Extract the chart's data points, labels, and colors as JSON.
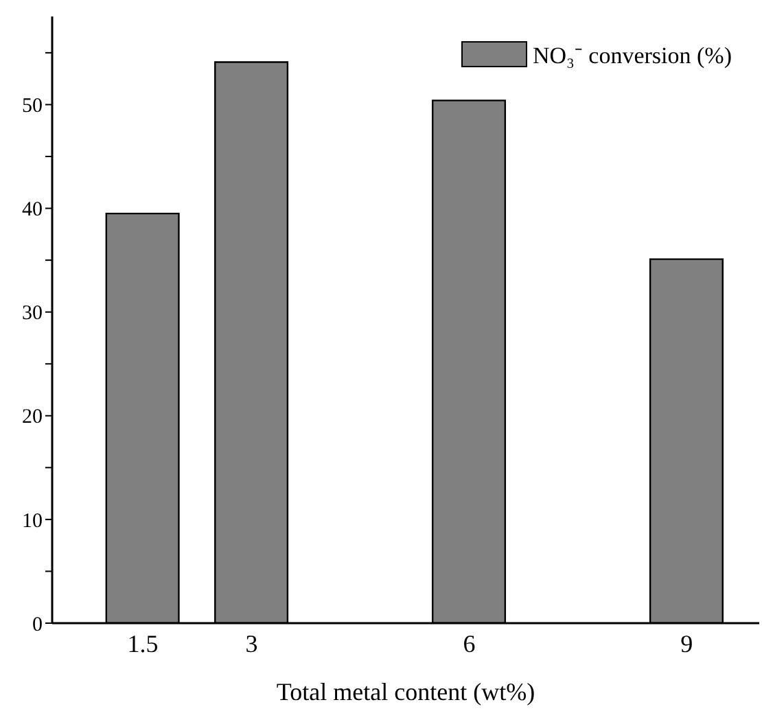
{
  "chart_data": {
    "type": "bar",
    "xlabel": "Total metal content (wt%)",
    "x": [
      1.5,
      3,
      6,
      9
    ],
    "series": [
      {
        "name": "NO₃⁻ conversion (%)",
        "color": "#808080",
        "values": [
          39.5,
          54.1,
          50.4,
          35.1
        ]
      }
    ],
    "xlim": [
      0.25,
      10
    ],
    "xticks": [
      1.5,
      3,
      6,
      9
    ],
    "ylim": [
      0,
      58.5
    ],
    "yticks": [
      0,
      {
        "value": 5,
        "label": null
      },
      10,
      {
        "value": 15,
        "label": null
      },
      20,
      {
        "value": 25,
        "label": null
      },
      30,
      {
        "value": 35,
        "label": null
      },
      40,
      {
        "value": 45,
        "label": null
      },
      50,
      {
        "value": 55,
        "label": null
      }
    ],
    "grid": false,
    "legend": "top right"
  }
}
